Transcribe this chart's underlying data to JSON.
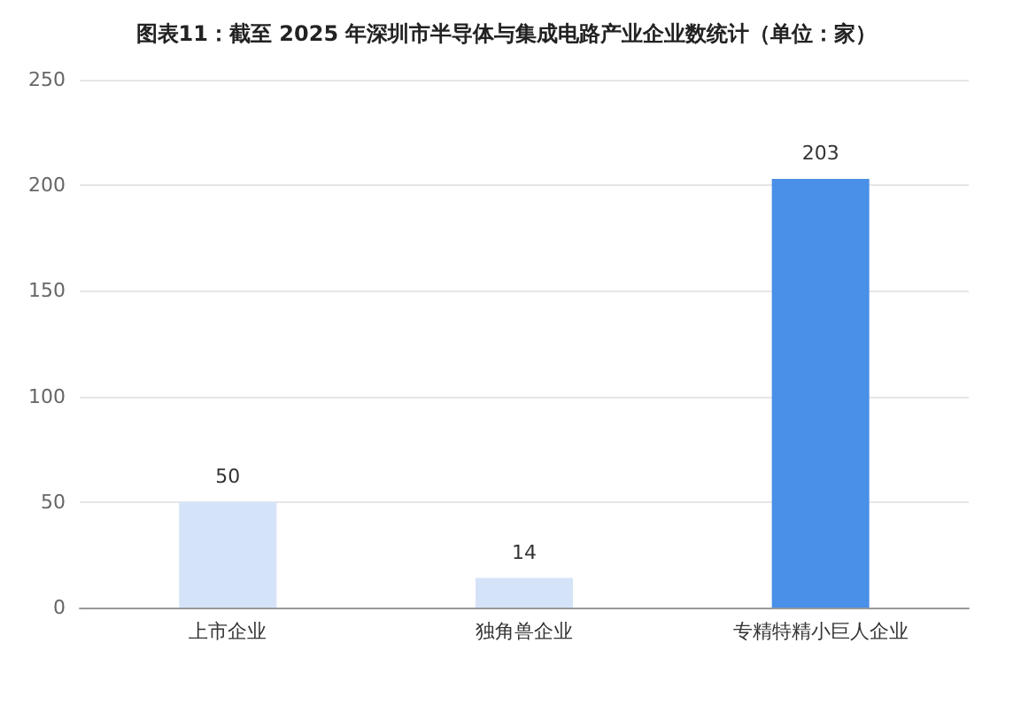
{
  "chart_data": {
    "type": "bar",
    "title": "图表11：截至 2025 年深圳市半导体与集成电路产业企业数统计（单位：家）",
    "categories": [
      "上市企业",
      "独角兽企业",
      "专精特精小巨人企业"
    ],
    "values": [
      50,
      14,
      203
    ],
    "colors": [
      "#d5e3f8",
      "#d5e3f8",
      "#4a8fe8"
    ],
    "ylim": [
      0,
      250
    ],
    "yticks": [
      0,
      50,
      100,
      150,
      200,
      250
    ],
    "grid": "y",
    "data_labels": true
  }
}
